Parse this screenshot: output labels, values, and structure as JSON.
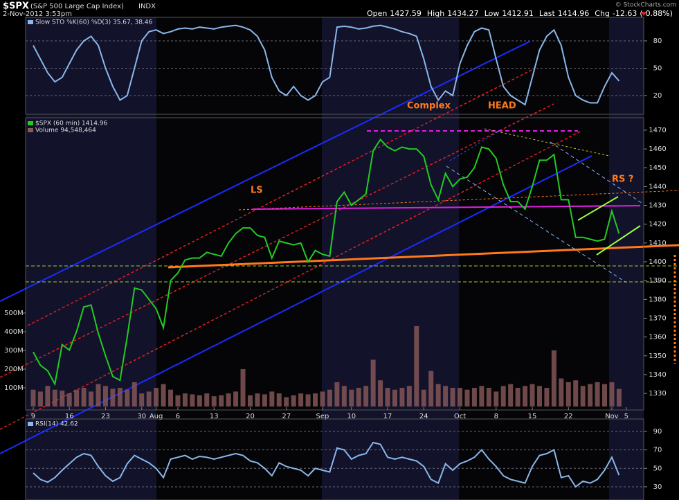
{
  "header": {
    "symbol": "$SPX",
    "name": "(S&P 500 Large Cap Index)",
    "exchange": "INDX",
    "datetime": "2-Nov-2012 3:53pm",
    "quote": [
      {
        "label": "Open",
        "value": 1427.59
      },
      {
        "label": "High",
        "value": 1434.27
      },
      {
        "label": "Low",
        "value": 1412.91
      },
      {
        "label": "Last",
        "value": 1414.96
      },
      {
        "label": "Chg",
        "value": -12.63
      }
    ],
    "change_pct": "(-0.88%)",
    "watermark": "© StockCharts.com"
  },
  "chart_data": [
    {
      "type": "line",
      "series": [
        {
          "name": "Slow STO %K(60) %D(3) 35.67, 38.46",
          "color": "#8ab8ea",
          "values": [
            75,
            60,
            45,
            35,
            40,
            55,
            70,
            80,
            85,
            75,
            50,
            30,
            15,
            20,
            50,
            80,
            90,
            92,
            88,
            90,
            93,
            94,
            93,
            95,
            94,
            93,
            95,
            96,
            97,
            95,
            92,
            85,
            70,
            40,
            25,
            20,
            30,
            20,
            15,
            20,
            35,
            40,
            95,
            96,
            95,
            93,
            94,
            96,
            97,
            95,
            93,
            90,
            88,
            85,
            60,
            30,
            15,
            25,
            20,
            55,
            75,
            90,
            94,
            92,
            60,
            30,
            20,
            15,
            10,
            40,
            70,
            85,
            92,
            75,
            40,
            20,
            15,
            12,
            12,
            30,
            45,
            36,
            null
          ]
        }
      ],
      "ylim": [
        -0.5,
        105.8
      ],
      "yticks": [
        20,
        50,
        80
      ],
      "grid": true
    },
    {
      "type": "line",
      "annotations": [
        "LS",
        "Complex",
        "HEAD",
        "RS ?"
      ],
      "categories": [
        "9",
        null,
        null,
        null,
        null,
        "16",
        null,
        null,
        null,
        null,
        "23",
        null,
        null,
        null,
        null,
        "30",
        null,
        "Aug",
        null,
        null,
        "6",
        null,
        null,
        null,
        null,
        "13",
        null,
        null,
        null,
        null,
        "20",
        null,
        null,
        null,
        null,
        "27",
        null,
        null,
        null,
        null,
        "Sep",
        null,
        null,
        null,
        "10",
        null,
        null,
        null,
        null,
        "17",
        null,
        null,
        null,
        null,
        "24",
        null,
        null,
        null,
        null,
        "Oct",
        null,
        null,
        null,
        null,
        "8",
        null,
        null,
        null,
        null,
        "15",
        null,
        null,
        null,
        null,
        "22",
        null,
        null,
        null,
        null,
        null,
        "Nov",
        null,
        "5"
      ],
      "series": [
        {
          "name": "$SPX (60 min) 1414.96",
          "color": "#22cc22",
          "values": [
            1352,
            1345,
            1342,
            1335,
            1356,
            1353,
            1363,
            1376,
            1377,
            1362,
            1350,
            1339,
            1337,
            1360,
            1386,
            1385,
            1380,
            1375,
            1365,
            1390,
            1394,
            1401,
            1402,
            1402,
            1405,
            1404,
            1403,
            1410,
            1415,
            1418,
            1418,
            1414,
            1413,
            1402,
            1411,
            1410,
            1409,
            1410,
            1400,
            1406,
            1404,
            1403,
            1432,
            1437,
            1430,
            1433,
            1436,
            1459,
            1465,
            1461,
            1459,
            1461,
            1460,
            1460,
            1456,
            1441,
            1433,
            1447,
            1440,
            1444,
            1445,
            1450,
            1461,
            1460,
            1455,
            1441,
            1432,
            1432,
            1428,
            1440,
            1454,
            1454,
            1457,
            1433,
            1433,
            1413,
            1413,
            1412,
            1411,
            1412,
            1427,
            1414.96,
            null
          ]
        },
        {
          "name": "Volume 94,548,464",
          "color": "#8a5a5a",
          "axis": "y2",
          "values": [
            90000000.0,
            80000000.0,
            110000000.0,
            90000000.0,
            85000000.0,
            70000000.0,
            90000000.0,
            100000000.0,
            80000000.0,
            120000000.0,
            110000000.0,
            95000000.0,
            100000000.0,
            90000000.0,
            130000000.0,
            70000000.0,
            80000000.0,
            100000000.0,
            120000000.0,
            90000000.0,
            60000000.0,
            70000000.0,
            65000000.0,
            60000000.0,
            70000000.0,
            55000000.0,
            60000000.0,
            70000000.0,
            80000000.0,
            200000000.0,
            60000000.0,
            70000000.0,
            65000000.0,
            80000000.0,
            70000000.0,
            50000000.0,
            60000000.0,
            70000000.0,
            65000000.0,
            70000000.0,
            80000000.0,
            90000000.0,
            130000000.0,
            110000000.0,
            90000000.0,
            100000000.0,
            110000000.0,
            250000000.0,
            140000000.0,
            100000000.0,
            90000000.0,
            100000000.0,
            110000000.0,
            430000000.0,
            90000000.0,
            190000000.0,
            120000000.0,
            110000000.0,
            100000000.0,
            100000000.0,
            90000000.0,
            100000000.0,
            110000000.0,
            100000000.0,
            80000000.0,
            110000000.0,
            120000000.0,
            100000000.0,
            110000000.0,
            120000000.0,
            110000000.0,
            100000000.0,
            300000000.0,
            150000000.0,
            130000000.0,
            140000000.0,
            110000000.0,
            120000000.0,
            130000000.0,
            120000000.0,
            130000000.0,
            94548464.0,
            null
          ]
        }
      ],
      "ylim": [
        1321.2,
        1476.6
      ],
      "yticks": [
        1330,
        1340,
        1350,
        1360,
        1370,
        1380,
        1390,
        1400,
        1410,
        1420,
        1430,
        1440,
        1450,
        1460,
        1470
      ],
      "y2lim": [
        -18500000,
        1544000000
      ],
      "y2ticks": [
        {
          "value": 100000000,
          "label": "100M"
        },
        {
          "value": 200000000,
          "label": "200M"
        },
        {
          "value": 300000000,
          "label": "300M"
        },
        {
          "value": 400000000,
          "label": "400M"
        },
        {
          "value": 500000000,
          "label": "500M"
        }
      ],
      "grid": false
    },
    {
      "type": "line",
      "series": [
        {
          "name": "RSI(14) 42.62",
          "color": "#8ab8ea",
          "values": [
            45,
            38,
            35,
            40,
            48,
            55,
            62,
            66,
            64,
            52,
            42,
            36,
            40,
            55,
            64,
            60,
            56,
            50,
            40,
            60,
            62,
            64,
            60,
            63,
            62,
            60,
            62,
            64,
            66,
            64,
            58,
            56,
            50,
            42,
            56,
            52,
            50,
            48,
            42,
            50,
            48,
            46,
            72,
            70,
            60,
            64,
            66,
            78,
            76,
            62,
            60,
            62,
            60,
            58,
            52,
            38,
            34,
            55,
            48,
            55,
            58,
            62,
            70,
            60,
            52,
            42,
            38,
            36,
            34,
            52,
            64,
            66,
            70,
            40,
            42,
            30,
            36,
            34,
            38,
            48,
            62,
            42.62,
            null
          ]
        }
      ],
      "ylim": [
        15.7,
        103.5
      ],
      "yticks": [
        30,
        50,
        70,
        90
      ],
      "grid": true
    }
  ]
}
